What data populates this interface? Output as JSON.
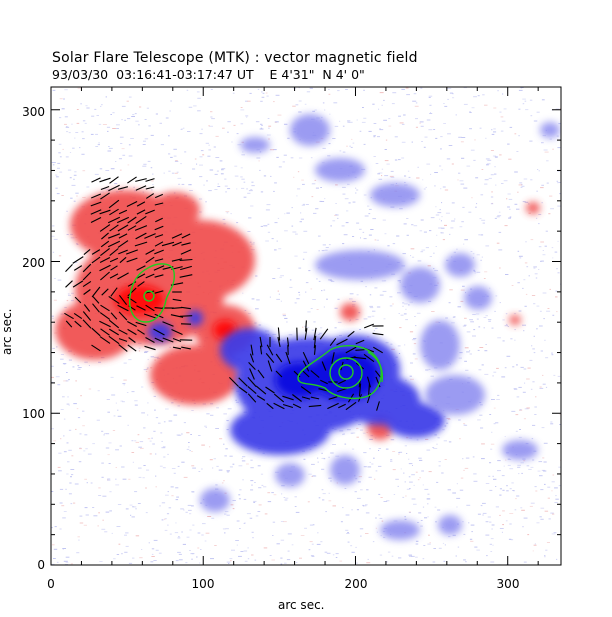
{
  "header": {
    "title": "Solar Flare Telescope (MTK) : vector magnetic field",
    "subtitle": "93/03/30  03:16:41-03:17:47 UT    E 4'31\"  N 4' 0\""
  },
  "axes": {
    "xlabel": "arc sec.",
    "ylabel": "arc sec.",
    "xlim": [
      0,
      335
    ],
    "ylim": [
      0,
      315
    ],
    "xticks": [
      "0",
      "100",
      "200",
      "300"
    ],
    "yticks": [
      "0",
      "100",
      "200",
      "300"
    ]
  },
  "colors": {
    "positive": "#f05050",
    "negative": "#3838e8",
    "contour": "#22cc22",
    "vector": "#000000",
    "noise": "#b8bcf0"
  }
}
